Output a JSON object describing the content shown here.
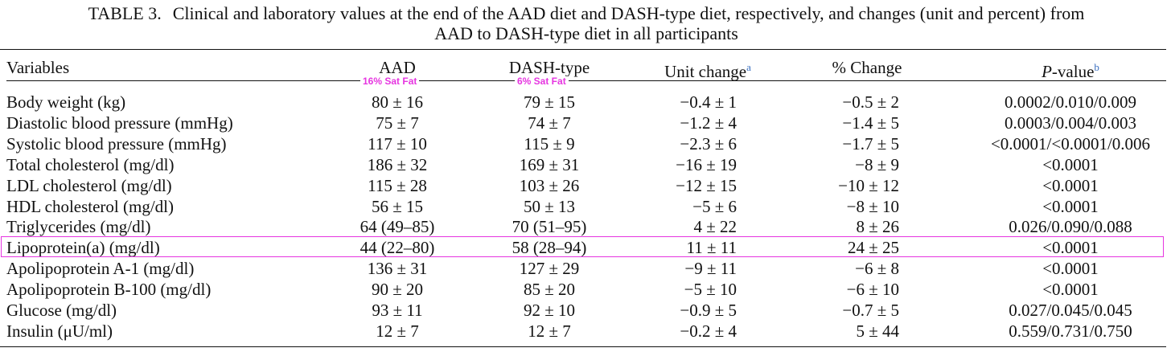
{
  "caption": {
    "label": "TABLE 3.",
    "line1": "Clinical and laboratory values at the end of the AAD diet and DASH-type diet, respectively, and changes (unit and percent) from",
    "line2": "AAD to DASH-type diet in all participants"
  },
  "headers": {
    "variables": "Variables",
    "aad": "AAD",
    "dash": "DASH-type",
    "unit_change": "Unit change",
    "unit_change_note": "a",
    "pct_change": "% Change",
    "p_value_italic": "P",
    "p_value_rest": "-value",
    "p_value_note": "b"
  },
  "annotations": {
    "aad_badge": "16% Sat Fat",
    "dash_badge": "6% Sat Fat",
    "highlight_color": "#e635e0"
  },
  "rows": [
    {
      "variable": "Body weight (kg)",
      "aad": "80 ± 16",
      "dash": "79 ± 15",
      "unit": "−0.4 ± 1",
      "pct": "−0.5 ± 2",
      "p": "0.0002/0.010/0.009"
    },
    {
      "variable": "Diastolic blood pressure (mmHg)",
      "aad": "75 ± 7",
      "dash": "74 ± 7",
      "unit": "−1.2 ± 4",
      "pct": "−1.4 ± 5",
      "p": "0.0003/0.004/0.003"
    },
    {
      "variable": "Systolic blood pressure (mmHg)",
      "aad": "117 ± 10",
      "dash": "115 ± 9",
      "unit": "−2.3 ± 6",
      "pct": "−1.7 ± 5",
      "p": "<0.0001/<0.0001/0.006"
    },
    {
      "variable": "Total cholesterol (mg/dl)",
      "aad": "186 ± 32",
      "dash": "169 ± 31",
      "unit": "−16 ± 19",
      "pct": "−8 ± 9",
      "p": "<0.0001"
    },
    {
      "variable": "LDL cholesterol (mg/dl)",
      "aad": "115 ± 28",
      "dash": "103 ± 26",
      "unit": "−12 ± 15",
      "pct": "−10 ± 12",
      "p": "<0.0001"
    },
    {
      "variable": "HDL cholesterol (mg/dl)",
      "aad": "56 ± 15",
      "dash": "50 ± 13",
      "unit": "−5 ± 6",
      "pct": "−8 ± 10",
      "p": "<0.0001"
    },
    {
      "variable": "Triglycerides (mg/dl)",
      "aad": "64 (49–85)",
      "dash": "70 (51–95)",
      "unit": "4 ± 22",
      "pct": "8 ± 26",
      "p": "0.026/0.090/0.088"
    },
    {
      "variable": "Lipoprotein(a) (mg/dl)",
      "aad": "44 (22–80)",
      "dash": "58 (28–94)",
      "unit": "11 ± 11",
      "pct": "24 ± 25",
      "p": "<0.0001"
    },
    {
      "variable": "Apolipoprotein A-1 (mg/dl)",
      "aad": "136 ± 31",
      "dash": "127 ± 29",
      "unit": "−9 ± 11",
      "pct": "−6 ± 8",
      "p": "<0.0001"
    },
    {
      "variable": "Apolipoprotein B-100 (mg/dl)",
      "aad": "90 ± 20",
      "dash": "85 ± 20",
      "unit": "−5 ± 10",
      "pct": "−6 ± 10",
      "p": "<0.0001"
    },
    {
      "variable": "Glucose (mg/dl)",
      "aad": "93 ± 11",
      "dash": "92 ± 10",
      "unit": "−0.9 ± 5",
      "pct": "−0.7 ± 5",
      "p": "0.027/0.045/0.045"
    },
    {
      "variable": "Insulin (μU/ml)",
      "aad": "12 ± 7",
      "dash": "12 ± 7",
      "unit": "−0.2 ± 4",
      "pct": "5 ± 44",
      "p": "0.559/0.731/0.750"
    }
  ]
}
